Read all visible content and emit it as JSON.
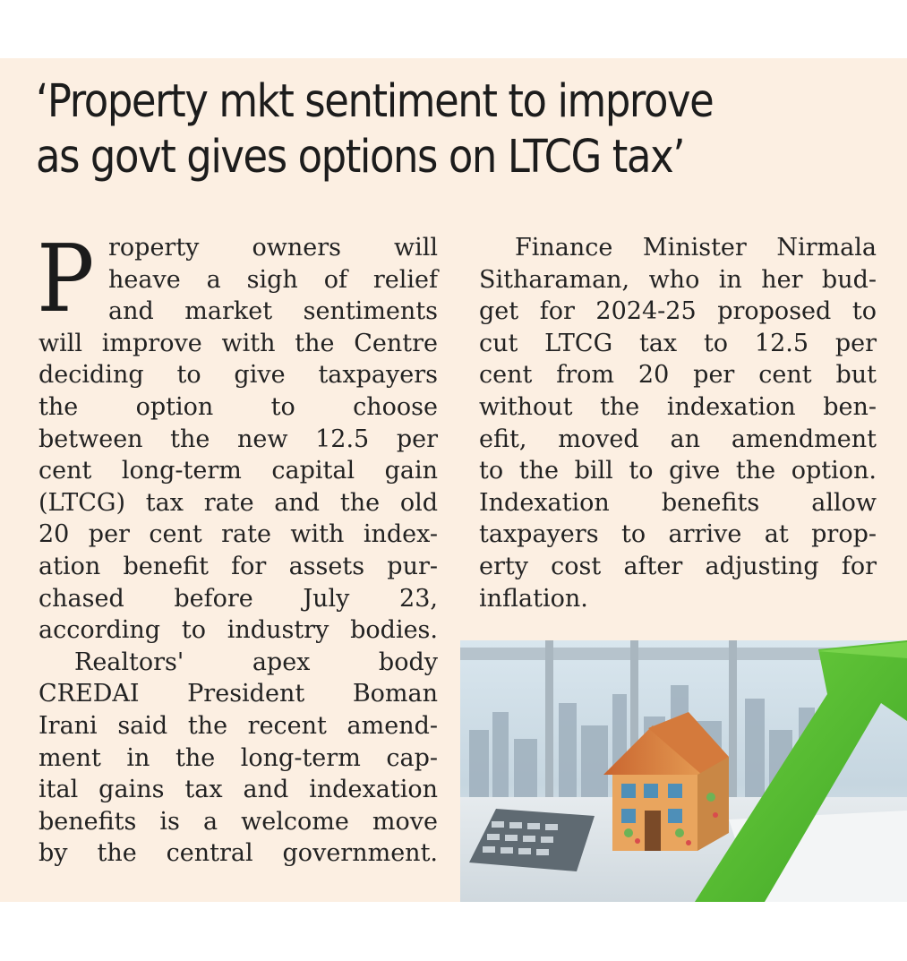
{
  "headline": {
    "line1": "‘Property mkt sentiment to improve",
    "line2": "as govt gives options on LTCG tax’"
  },
  "article": {
    "dropcap": "P",
    "left_column": [
      "roperty owners will",
      "heave a sigh of relief",
      "and market sentiments",
      "will improve with the Centre",
      "deciding to give taxpayers",
      "the option to choose",
      "between the new 12.5 per",
      "cent long-term capital gain",
      "(LTCG) tax rate and the old",
      "20 per cent rate with index-",
      "ation benefit for assets pur-",
      "chased before July 23,",
      "according to industry bodies.",
      "Realtors' apex body",
      "CREDAI President Boman",
      "Irani said the recent amend-",
      "ment in the long-term cap-",
      "ital gains tax and indexation",
      "benefits is a welcome move",
      "by the central government."
    ],
    "right_column": [
      "Finance Minister Nirmala",
      "Sitharaman, who in her bud-",
      "get for 2024-25 proposed to",
      "cut LTCG tax to 12.5 per",
      "cent from 20 per cent but",
      "without the indexation ben-",
      "efit, moved an amendment",
      "to the bill to give the option.",
      "Indexation benefits allow",
      "taxpayers to arrive at prop-",
      "erty cost after adjusting for",
      "inflation."
    ]
  },
  "colors": {
    "paper": "#fcefe2",
    "ink": "#222222",
    "arrow_green": "#5cc134"
  },
  "photo": {
    "subject": "house-model-with-growth-arrow"
  }
}
